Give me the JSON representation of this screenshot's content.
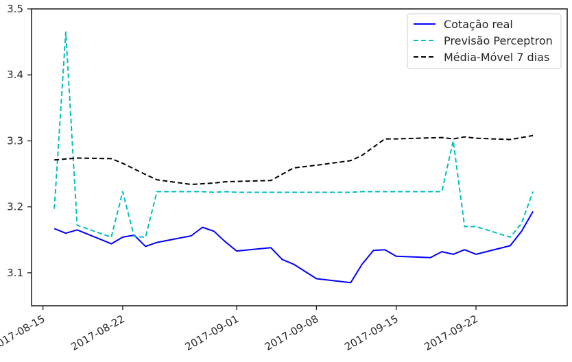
{
  "chart_data": {
    "type": "line",
    "title": "",
    "xlabel": "",
    "ylabel": "",
    "xlim": [
      "2017-08-14",
      "2017-09-30"
    ],
    "ylim": [
      3.05,
      3.5
    ],
    "x_ticks": [
      "2017-08-15",
      "2017-08-22",
      "2017-09-01",
      "2017-09-08",
      "2017-09-15",
      "2017-09-22"
    ],
    "y_ticks": [
      3.1,
      3.2,
      3.3,
      3.4,
      3.5
    ],
    "y_tick_labels": [
      "3.1",
      "3.2",
      "3.3",
      "3.4",
      "3.5"
    ],
    "grid": false,
    "legend_position": "top-right",
    "series": [
      {
        "name": "Cotação real",
        "color": "#0000ff",
        "style": "solid",
        "points": [
          [
            "2017-08-16",
            3.167
          ],
          [
            "2017-08-17",
            3.16
          ],
          [
            "2017-08-18",
            3.165
          ],
          [
            "2017-08-21",
            3.144
          ],
          [
            "2017-08-22",
            3.154
          ],
          [
            "2017-08-23",
            3.157
          ],
          [
            "2017-08-24",
            3.14
          ],
          [
            "2017-08-25",
            3.146
          ],
          [
            "2017-08-28",
            3.156
          ],
          [
            "2017-08-29",
            3.169
          ],
          [
            "2017-08-30",
            3.163
          ],
          [
            "2017-08-31",
            3.147
          ],
          [
            "2017-09-01",
            3.133
          ],
          [
            "2017-09-04",
            3.138
          ],
          [
            "2017-09-05",
            3.12
          ],
          [
            "2017-09-06",
            3.113
          ],
          [
            "2017-09-08",
            3.091
          ],
          [
            "2017-09-11",
            3.085
          ],
          [
            "2017-09-12",
            3.113
          ],
          [
            "2017-09-13",
            3.134
          ],
          [
            "2017-09-14",
            3.135
          ],
          [
            "2017-09-15",
            3.125
          ],
          [
            "2017-09-18",
            3.123
          ],
          [
            "2017-09-19",
            3.132
          ],
          [
            "2017-09-20",
            3.128
          ],
          [
            "2017-09-21",
            3.135
          ],
          [
            "2017-09-22",
            3.128
          ],
          [
            "2017-09-25",
            3.141
          ],
          [
            "2017-09-26",
            3.163
          ],
          [
            "2017-09-27",
            3.193
          ]
        ]
      },
      {
        "name": "Previsão Perceptron",
        "color": "#00bfbf",
        "style": "dashed",
        "points": [
          [
            "2017-08-16",
            3.197
          ],
          [
            "2017-08-17",
            3.465
          ],
          [
            "2017-08-18",
            3.172
          ],
          [
            "2017-08-21",
            3.154
          ],
          [
            "2017-08-22",
            3.223
          ],
          [
            "2017-08-23",
            3.155
          ],
          [
            "2017-08-24",
            3.154
          ],
          [
            "2017-08-25",
            3.223
          ],
          [
            "2017-08-28",
            3.223
          ],
          [
            "2017-08-29",
            3.223
          ],
          [
            "2017-08-30",
            3.222
          ],
          [
            "2017-08-31",
            3.223
          ],
          [
            "2017-09-01",
            3.222
          ],
          [
            "2017-09-04",
            3.222
          ],
          [
            "2017-09-05",
            3.222
          ],
          [
            "2017-09-06",
            3.222
          ],
          [
            "2017-09-08",
            3.222
          ],
          [
            "2017-09-11",
            3.222
          ],
          [
            "2017-09-12",
            3.223
          ],
          [
            "2017-09-13",
            3.223
          ],
          [
            "2017-09-14",
            3.223
          ],
          [
            "2017-09-15",
            3.223
          ],
          [
            "2017-09-18",
            3.223
          ],
          [
            "2017-09-19",
            3.223
          ],
          [
            "2017-09-20",
            3.3
          ],
          [
            "2017-09-21",
            3.17
          ],
          [
            "2017-09-22",
            3.17
          ],
          [
            "2017-09-25",
            3.154
          ],
          [
            "2017-09-26",
            3.175
          ],
          [
            "2017-09-27",
            3.223
          ]
        ]
      },
      {
        "name": "Média-Móvel 7 dias",
        "color": "#000000",
        "style": "dashed",
        "points": [
          [
            "2017-08-16",
            3.271
          ],
          [
            "2017-08-18",
            3.274
          ],
          [
            "2017-08-21",
            3.273
          ],
          [
            "2017-08-22",
            3.266
          ],
          [
            "2017-08-24",
            3.249
          ],
          [
            "2017-08-25",
            3.241
          ],
          [
            "2017-08-28",
            3.234
          ],
          [
            "2017-08-30",
            3.236
          ],
          [
            "2017-08-31",
            3.238
          ],
          [
            "2017-09-04",
            3.24
          ],
          [
            "2017-09-06",
            3.259
          ],
          [
            "2017-09-08",
            3.263
          ],
          [
            "2017-09-11",
            3.27
          ],
          [
            "2017-09-12",
            3.278
          ],
          [
            "2017-09-14",
            3.303
          ],
          [
            "2017-09-15",
            3.303
          ],
          [
            "2017-09-19",
            3.305
          ],
          [
            "2017-09-20",
            3.303
          ],
          [
            "2017-09-21",
            3.306
          ],
          [
            "2017-09-22",
            3.304
          ],
          [
            "2017-09-25",
            3.302
          ],
          [
            "2017-09-27",
            3.308
          ]
        ]
      }
    ]
  }
}
